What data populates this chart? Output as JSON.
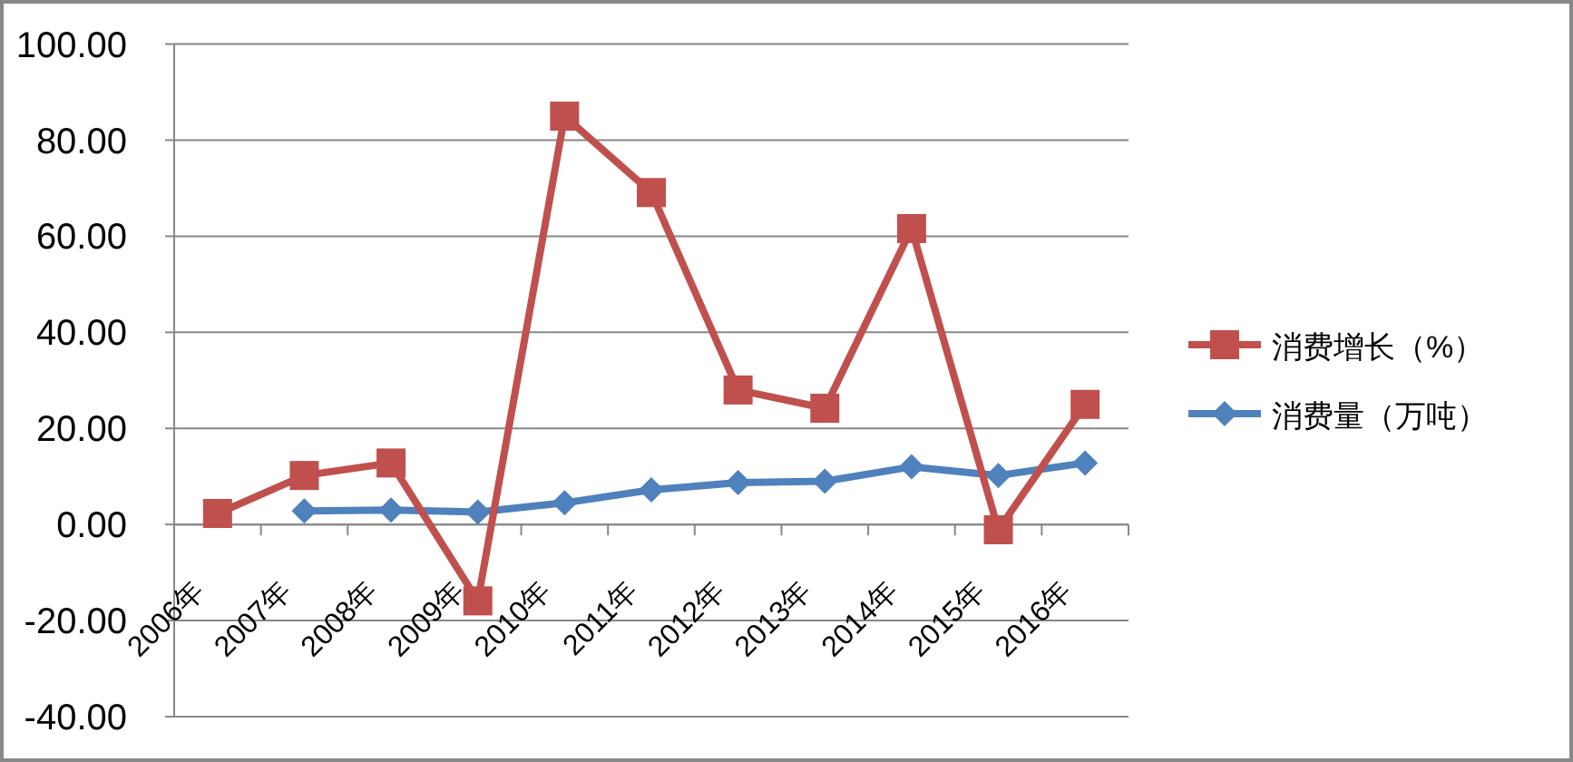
{
  "chart_data": {
    "type": "line",
    "categories": [
      "2006年",
      "2007年",
      "2008年",
      "2009年",
      "2010年",
      "2011年",
      "2012年",
      "2013年",
      "2014年",
      "2015年",
      "2016年"
    ],
    "series": [
      {
        "name": "消费增长（%）",
        "color": "#c0504d",
        "marker": "square",
        "values": [
          2.3,
          10.2,
          12.8,
          -15.9,
          85,
          69.1,
          28,
          24.2,
          61.6,
          -1.1,
          25
        ]
      },
      {
        "name": "消费量（万吨）",
        "color": "#4f81bd",
        "marker": "diamond",
        "values": [
          null,
          2.8,
          3,
          2.6,
          4.5,
          7.2,
          8.7,
          9,
          12,
          10.2,
          12.8
        ]
      }
    ],
    "ylim": [
      -40,
      100
    ],
    "yticks": [
      {
        "value": -40,
        "label": "-40.00"
      },
      {
        "value": -20,
        "label": "-20.00"
      },
      {
        "value": 0,
        "label": "0.00"
      },
      {
        "value": 20,
        "label": "20.00"
      },
      {
        "value": 40,
        "label": "40.00"
      },
      {
        "value": 60,
        "label": "60.00"
      },
      {
        "value": 80,
        "label": "80.00"
      },
      {
        "value": 100,
        "label": "100.00"
      }
    ],
    "grid": "y",
    "legend": "right"
  }
}
